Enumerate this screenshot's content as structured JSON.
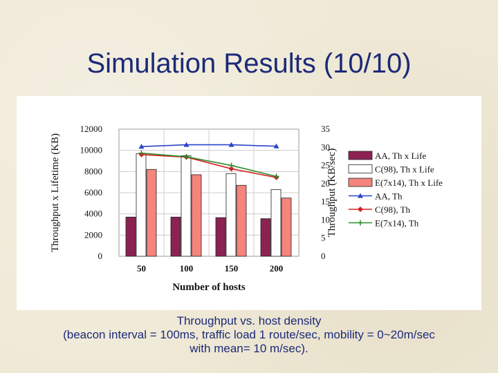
{
  "slide": {
    "title": "Simulation Results (10/10)",
    "caption_lines": [
      "Throughput vs. host density",
      "(beacon interval = 100ms, traffic load 1 route/sec, mobility = 0~20m/sec",
      "with mean= 10 m/sec)."
    ]
  },
  "colors": {
    "background": "#efe9d6",
    "title": "#1c2a78",
    "aa_bar": "#8b2252",
    "c98_bar": "#ffffff",
    "e_bar": "#f4847c",
    "aa_line": "#2b44c8",
    "c98_line": "#d42020",
    "e_line": "#2e8b2e"
  },
  "chart_data": {
    "type": "bar",
    "combo": "bar + line (dual y-axis)",
    "categories": [
      "50",
      "100",
      "150",
      "200"
    ],
    "xlabel": "Number of hosts",
    "ylabel_left": "Throughput x Lifetime (KB)",
    "ylabel_right": "Throughput (KB/sec)",
    "ylim_left": [
      0,
      12000
    ],
    "yticks_left": [
      "0",
      "2000",
      "4000",
      "6000",
      "8000",
      "10000",
      "12000"
    ],
    "ylim_right": [
      0,
      35
    ],
    "yticks_right": [
      "0",
      "5",
      "10",
      "15",
      "20",
      "25",
      "30",
      "35"
    ],
    "legend_position": "right",
    "bar_series": [
      {
        "name": "AA, Th x Life",
        "values": [
          3700,
          3700,
          3650,
          3550
        ]
      },
      {
        "name": "C(98), Th x Life",
        "values": [
          9700,
          9500,
          7800,
          6300
        ]
      },
      {
        "name": "E(7x14), Th x Life",
        "values": [
          8200,
          7700,
          6700,
          5500
        ]
      }
    ],
    "line_series": [
      {
        "name": "AA, Th",
        "values": [
          30.2,
          30.7,
          30.7,
          30.3
        ]
      },
      {
        "name": "C(98), Th",
        "values": [
          28.0,
          27.3,
          24.1,
          21.7
        ]
      },
      {
        "name": "E(7x14), Th",
        "values": [
          28.4,
          27.4,
          25.0,
          22.0
        ]
      }
    ]
  }
}
